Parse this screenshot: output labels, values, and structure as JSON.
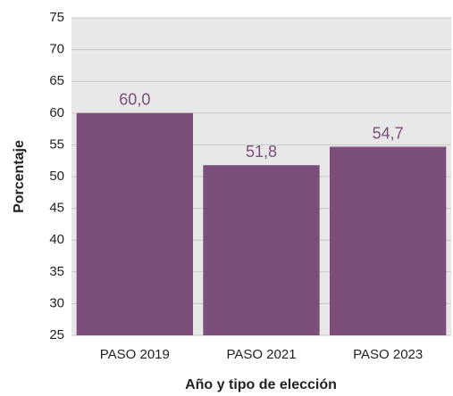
{
  "chart_data": {
    "type": "bar",
    "categories": [
      "PASO 2019",
      "PASO 2021",
      "PASO 2023"
    ],
    "values": [
      60.0,
      51.8,
      54.7
    ],
    "value_labels": [
      "60,0",
      "51,8",
      "54,7"
    ],
    "color": "#7b4f79",
    "ylim": [
      25,
      75
    ],
    "yticks": [
      25,
      30,
      35,
      40,
      45,
      50,
      55,
      60,
      65,
      70,
      75
    ],
    "grid": true,
    "y_label": "Porcentaje",
    "x_label": "Año y tipo de elección"
  }
}
